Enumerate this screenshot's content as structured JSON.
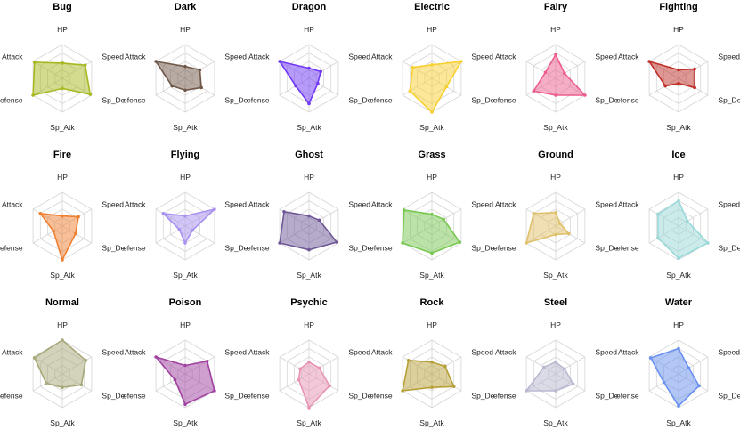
{
  "chart_data": {
    "type": "radar",
    "axes": [
      "HP",
      "Speed",
      "Sp_De",
      "Sp_Atk",
      "Defense",
      "Attack"
    ],
    "axis_labels_displayed": [
      "HP",
      "Speed",
      "Sp_De",
      "Sp_Atk",
      "efense",
      "Attack"
    ],
    "range": [
      0,
      1
    ],
    "grid_levels": 4,
    "grid": true,
    "panels": [
      {
        "title": "Bug",
        "color": "#a8b820",
        "values": [
          0.45,
          0.78,
          0.95,
          0.3,
          1.0,
          0.95
        ]
      },
      {
        "title": "Dark",
        "color": "#705848",
        "values": [
          0.35,
          0.5,
          0.55,
          0.35,
          0.45,
          1.0
        ]
      },
      {
        "title": "Dragon",
        "color": "#7038f8",
        "values": [
          0.3,
          0.4,
          0.3,
          0.75,
          0.45,
          1.0
        ]
      },
      {
        "title": "Electric",
        "color": "#f8d030",
        "values": [
          0.4,
          1.0,
          0.5,
          1.0,
          0.75,
          0.65
        ]
      },
      {
        "title": "Fairy",
        "color": "#ee5c8d",
        "values": [
          0.7,
          0.3,
          1.0,
          0.5,
          0.75,
          0.35
        ]
      },
      {
        "title": "Fighting",
        "color": "#c03028",
        "values": [
          0.25,
          0.55,
          0.55,
          0.15,
          0.45,
          1.0
        ]
      },
      {
        "title": "Fire",
        "color": "#f08030",
        "values": [
          0.3,
          0.55,
          0.45,
          1.0,
          0.3,
          0.75
        ]
      },
      {
        "title": "Flying",
        "color": "#a890f0",
        "values": [
          0.3,
          1.0,
          0.25,
          0.5,
          0.2,
          0.75
        ]
      },
      {
        "title": "Ghost",
        "color": "#705898",
        "values": [
          0.3,
          0.35,
          0.95,
          0.7,
          1.0,
          0.85
        ]
      },
      {
        "title": "Grass",
        "color": "#78c850",
        "values": [
          0.35,
          0.4,
          0.95,
          0.8,
          1.0,
          0.95
        ]
      },
      {
        "title": "Ground",
        "color": "#e0c068",
        "values": [
          0.4,
          0.15,
          0.45,
          0.25,
          1.0,
          0.75
        ]
      },
      {
        "title": "Ice",
        "color": "#98d8d8",
        "values": [
          0.75,
          0.3,
          1.0,
          0.95,
          0.7,
          0.7
        ]
      },
      {
        "title": "Normal",
        "color": "#a8a878",
        "values": [
          1.0,
          0.8,
          0.65,
          0.4,
          0.55,
          0.95
        ]
      },
      {
        "title": "Poison",
        "color": "#a040a0",
        "values": [
          0.25,
          0.75,
          1.0,
          0.9,
          0.35,
          1.0
        ]
      },
      {
        "title": "Psychic",
        "color": "#e893b4",
        "values": [
          0.35,
          0.35,
          0.7,
          1.0,
          0.35,
          0.3
        ]
      },
      {
        "title": "Rock",
        "color": "#b8a038",
        "values": [
          0.35,
          0.45,
          0.75,
          0.4,
          1.0,
          0.8
        ]
      },
      {
        "title": "Steel",
        "color": "#b8b8d0",
        "values": [
          0.35,
          0.3,
          0.6,
          0.5,
          1.0,
          0.4
        ]
      },
      {
        "title": "Water",
        "color": "#6890f0",
        "values": [
          0.75,
          0.35,
          0.7,
          0.95,
          0.5,
          0.95
        ]
      }
    ]
  }
}
